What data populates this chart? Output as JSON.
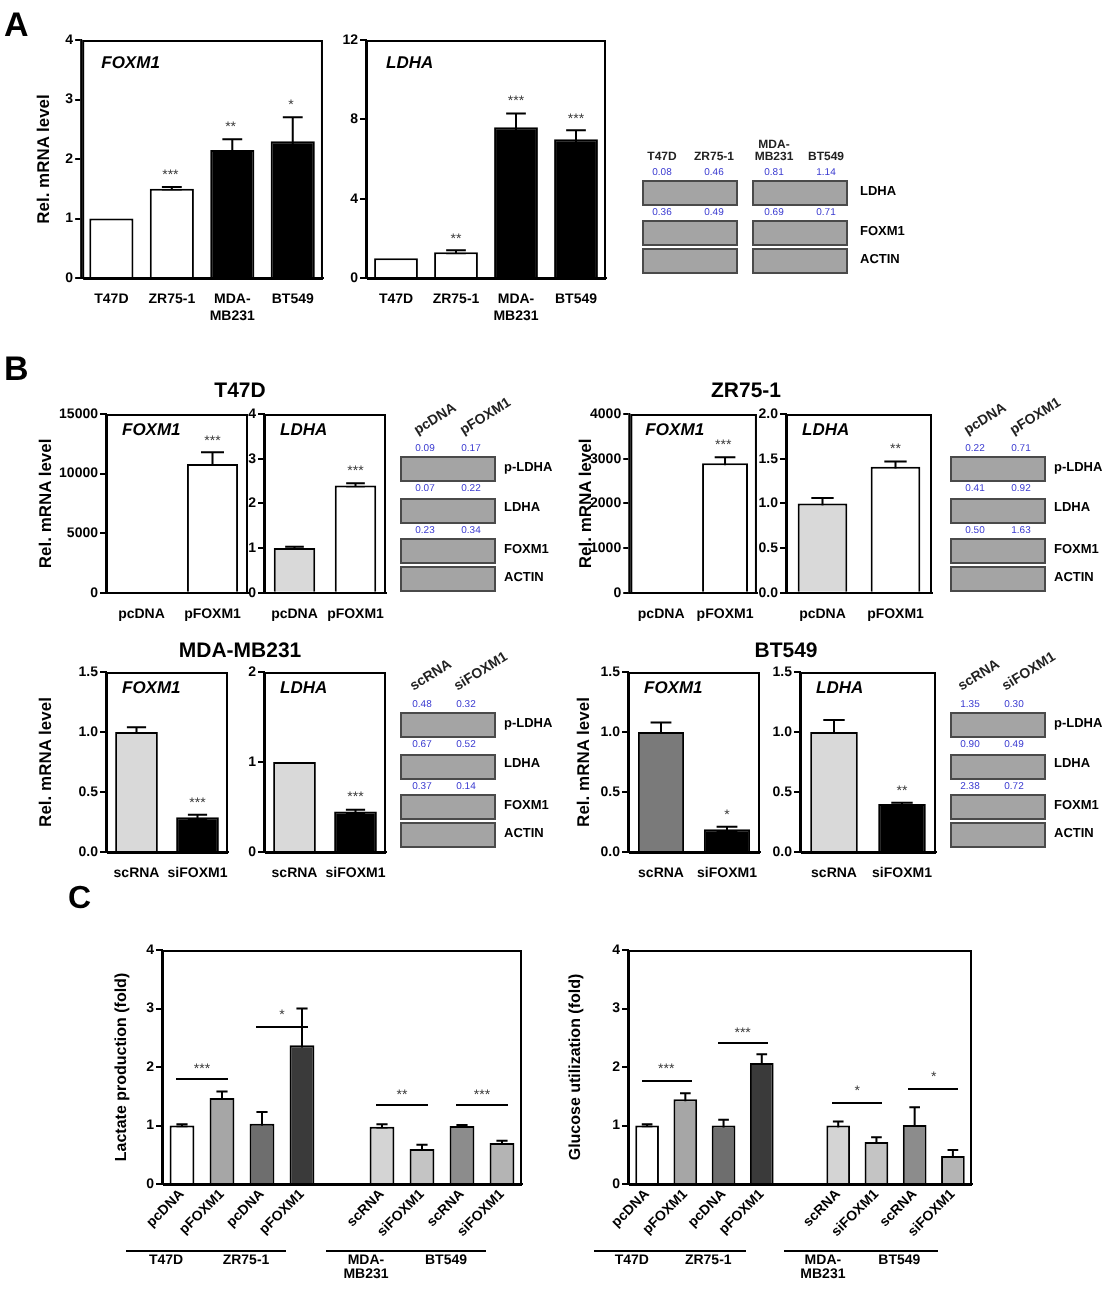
{
  "chart_data": [
    {
      "type": "other",
      "title": "A"
    },
    {
      "type": "bar",
      "title": "FOXM1",
      "ylabel": "Rel. mRNA level",
      "categories": [
        "T47D",
        "ZR75-1",
        "MDA-MB231",
        "BT549"
      ],
      "values": [
        1.0,
        1.5,
        2.15,
        2.3
      ],
      "errors": [
        null,
        0.03,
        0.18,
        0.4
      ],
      "value_labels": [
        null,
        "***",
        "**",
        "*"
      ],
      "colors": [
        "#ffffff",
        "#ffffff",
        "#000000",
        "#000000"
      ],
      "ylim": [
        0,
        4
      ],
      "yticks": [
        0,
        1,
        2,
        3,
        4
      ]
    },
    {
      "type": "bar",
      "title": "LDHA",
      "categories": [
        "T47D",
        "ZR75-1",
        "MDA-MB231",
        "BT549"
      ],
      "values": [
        1.0,
        1.3,
        7.6,
        7.0
      ],
      "errors": [
        null,
        0.1,
        0.7,
        0.45
      ],
      "value_labels": [
        null,
        "**",
        "***",
        "***"
      ],
      "colors": [
        "#ffffff",
        "#ffffff",
        "#000000",
        "#000000"
      ],
      "ylim": [
        0,
        12
      ],
      "yticks": [
        0,
        4,
        8,
        12
      ]
    },
    {
      "type": "other",
      "categories": [
        "T47D",
        "ZR75-1",
        "MDA-MB231",
        "BT549"
      ],
      "series": [
        {
          "name": "LDHA",
          "values": [
            0.08,
            0.46,
            0.81,
            1.14
          ]
        },
        {
          "name": "FOXM1",
          "values": [
            0.36,
            0.49,
            0.69,
            0.71
          ]
        },
        {
          "name": "ACTIN",
          "values": [
            null,
            null,
            null,
            null
          ]
        }
      ],
      "data_labels": true
    },
    {
      "type": "other",
      "title": "B"
    },
    {
      "type": "other",
      "title": "T47D"
    },
    {
      "type": "bar",
      "title": "FOXM1",
      "ylabel": "Rel. mRNA level",
      "categories": [
        "pcDNA",
        "pFOXM1"
      ],
      "values": [
        0,
        10800
      ],
      "errors": [
        null,
        1000
      ],
      "value_labels": [
        null,
        "***"
      ],
      "colors": [
        "#ffffff",
        "#ffffff"
      ],
      "ylim": [
        0,
        15000
      ],
      "yticks": [
        0,
        5000,
        10000,
        15000
      ]
    },
    {
      "type": "bar",
      "title": "LDHA",
      "categories": [
        "pcDNA",
        "pFOXM1"
      ],
      "values": [
        1.0,
        2.4
      ],
      "errors": [
        0.03,
        0.05
      ],
      "value_labels": [
        null,
        "***"
      ],
      "colors": [
        "#d9d9d9",
        "#ffffff"
      ],
      "ylim": [
        0,
        4
      ],
      "yticks": [
        0,
        1,
        2,
        3,
        4
      ]
    },
    {
      "type": "other",
      "categories": [
        "pcDNA",
        "pFOXM1"
      ],
      "series": [
        {
          "name": "p-LDHA",
          "values": [
            0.09,
            0.17
          ]
        },
        {
          "name": "LDHA",
          "values": [
            0.07,
            0.22
          ]
        },
        {
          "name": "FOXM1",
          "values": [
            0.23,
            0.34
          ]
        },
        {
          "name": "ACTIN",
          "values": [
            null,
            null
          ]
        }
      ],
      "data_labels": true
    },
    {
      "type": "other",
      "title": "ZR75-1"
    },
    {
      "type": "bar",
      "title": "FOXM1",
      "ylabel": "Rel. mRNA level",
      "categories": [
        "pcDNA",
        "pFOXM1"
      ],
      "values": [
        0,
        2900
      ],
      "errors": [
        null,
        130
      ],
      "value_labels": [
        null,
        "***"
      ],
      "colors": [
        "#ffffff",
        "#ffffff"
      ],
      "ylim": [
        0,
        4000
      ],
      "yticks": [
        0,
        1000,
        2000,
        3000,
        4000
      ]
    },
    {
      "type": "bar",
      "title": "LDHA",
      "categories": [
        "pcDNA",
        "pFOXM1"
      ],
      "values": [
        1.0,
        1.41
      ],
      "errors": [
        0.06,
        0.06
      ],
      "value_labels": [
        null,
        "**"
      ],
      "colors": [
        "#d9d9d9",
        "#ffffff"
      ],
      "ylim": [
        0,
        2
      ],
      "yticks": [
        {
          "value": 0,
          "label": "0.0"
        },
        {
          "value": 0.5,
          "label": "0.5"
        },
        {
          "value": 1,
          "label": "1.0"
        },
        {
          "value": 1.5,
          "label": "1.5"
        },
        {
          "value": 2,
          "label": "2.0"
        }
      ]
    },
    {
      "type": "other",
      "categories": [
        "pcDNA",
        "pFOXM1"
      ],
      "series": [
        {
          "name": "p-LDHA",
          "values": [
            0.22,
            0.71
          ]
        },
        {
          "name": "LDHA",
          "values": [
            0.41,
            0.92
          ]
        },
        {
          "name": "FOXM1",
          "values": [
            0.5,
            1.63
          ],
          "value_labels": [
            "0.50",
            "1.63"
          ]
        },
        {
          "name": "ACTIN",
          "values": [
            null,
            null
          ]
        }
      ],
      "data_labels": true
    },
    {
      "type": "other",
      "title": "MDA-MB231"
    },
    {
      "type": "bar",
      "title": "FOXM1",
      "ylabel": "Rel. mRNA level",
      "categories": [
        "scRNA",
        "siFOXM1"
      ],
      "values": [
        1.0,
        0.29
      ],
      "errors": [
        0.04,
        0.02
      ],
      "value_labels": [
        null,
        "***"
      ],
      "colors": [
        "#d9d9d9",
        "#000000"
      ],
      "ylim": [
        0,
        1.5
      ],
      "yticks": [
        {
          "value": 0,
          "label": "0.0"
        },
        {
          "value": 0.5,
          "label": "0.5"
        },
        {
          "value": 1,
          "label": "1.0"
        },
        {
          "value": 1.5,
          "label": "1.5"
        }
      ]
    },
    {
      "type": "bar",
      "title": "LDHA",
      "categories": [
        "scRNA",
        "siFOXM1"
      ],
      "values": [
        1.0,
        0.45
      ],
      "errors": [
        null,
        0.02
      ],
      "value_labels": [
        null,
        "***"
      ],
      "colors": [
        "#d9d9d9",
        "#000000"
      ],
      "ylim": [
        0,
        2
      ],
      "yticks": [
        0,
        1,
        2
      ]
    },
    {
      "type": "other",
      "categories": [
        "scRNA",
        "siFOXM1"
      ],
      "series": [
        {
          "name": "p-LDHA",
          "values": [
            0.48,
            0.32
          ]
        },
        {
          "name": "LDHA",
          "values": [
            0.67,
            0.52
          ]
        },
        {
          "name": "FOXM1",
          "values": [
            0.37,
            0.14
          ]
        },
        {
          "name": "ACTIN",
          "values": [
            null,
            null
          ]
        }
      ],
      "data_labels": true
    },
    {
      "type": "other",
      "title": "BT549"
    },
    {
      "type": "bar",
      "title": "FOXM1",
      "ylabel": "Rel. mRNA level",
      "categories": [
        "scRNA",
        "siFOXM1"
      ],
      "values": [
        1.0,
        0.19
      ],
      "errors": [
        0.08,
        0.02
      ],
      "value_labels": [
        null,
        "*"
      ],
      "colors": [
        "#7a7a7a",
        "#000000"
      ],
      "ylim": [
        0,
        1.5
      ],
      "yticks": [
        {
          "value": 0,
          "label": "0.0"
        },
        {
          "value": 0.5,
          "label": "0.5"
        },
        {
          "value": 1,
          "label": "1.0"
        },
        {
          "value": 1.5,
          "label": "1.5"
        }
      ]
    },
    {
      "type": "bar",
      "title": "LDHA",
      "categories": [
        "scRNA",
        "siFOXM1"
      ],
      "values": [
        1.0,
        0.4
      ],
      "errors": [
        0.1,
        0.01
      ],
      "value_labels": [
        null,
        "**"
      ],
      "colors": [
        "#d9d9d9",
        "#000000"
      ],
      "ylim": [
        0,
        1.5
      ],
      "yticks": [
        {
          "value": 0,
          "label": "0.0"
        },
        {
          "value": 0.5,
          "label": "0.5"
        },
        {
          "value": 1,
          "label": "1.0"
        },
        {
          "value": 1.5,
          "label": "1.5"
        }
      ]
    },
    {
      "type": "other",
      "categories": [
        "scRNA",
        "siFOXM1"
      ],
      "series": [
        {
          "name": "p-LDHA",
          "values": [
            1.35,
            0.3
          ],
          "value_labels": [
            "1.35",
            "0.30"
          ]
        },
        {
          "name": "LDHA",
          "values": [
            0.9,
            0.49
          ],
          "value_labels": [
            "0.90",
            "0.49"
          ]
        },
        {
          "name": "FOXM1",
          "values": [
            2.38,
            0.72
          ]
        },
        {
          "name": "ACTIN",
          "values": [
            null,
            null
          ]
        }
      ],
      "data_labels": true
    },
    {
      "type": "other",
      "title": "C"
    },
    {
      "type": "bar",
      "ylabel": "Lactate production (fold)",
      "categories": [
        "pcDNA",
        "pFOXM1",
        "pcDNA",
        "pFOXM1",
        null,
        "scRNA",
        "siFOXM1",
        "scRNA",
        "siFOXM1"
      ],
      "values": [
        1.0,
        1.47,
        1.03,
        2.37,
        null,
        0.98,
        0.6,
        0.99,
        0.7
      ],
      "errors": [
        0.02,
        0.11,
        0.2,
        0.63,
        null,
        0.04,
        0.07,
        0.02,
        0.04
      ],
      "colors": [
        "#ffffff",
        "#a6a6a6",
        "#6e6e6e",
        "#3a3a3a",
        null,
        "#d4d4d4",
        "#c4c4c4",
        "#8c8c8c",
        "#b4b4b4"
      ],
      "ylim": [
        0,
        4
      ],
      "yticks": [
        0,
        1,
        2,
        3,
        4
      ],
      "annotations": [
        "***",
        "*",
        "**",
        "***",
        "T47D",
        "ZR75-1",
        "MDA-MB231",
        "BT549"
      ]
    },
    {
      "type": "bar",
      "ylabel": "Glucose utilization (fold)",
      "categories": [
        "pcDNA",
        "pFOXM1",
        "pcDNA",
        "pFOXM1",
        null,
        "scRNA",
        "siFOXM1",
        "scRNA",
        "siFOXM1"
      ],
      "values": [
        1.0,
        1.45,
        1.0,
        2.07,
        null,
        1.0,
        0.72,
        1.01,
        0.48
      ],
      "errors": [
        0.02,
        0.1,
        0.1,
        0.15,
        null,
        0.07,
        0.08,
        0.3,
        0.1
      ],
      "colors": [
        "#ffffff",
        "#a6a6a6",
        "#6e6e6e",
        "#3a3a3a",
        null,
        "#d4d4d4",
        "#c4c4c4",
        "#8c8c8c",
        "#b4b4b4"
      ],
      "ylim": [
        0,
        4
      ],
      "yticks": [
        0,
        1,
        2,
        3,
        4
      ],
      "annotations": [
        "***",
        "***",
        "*",
        "*",
        "T47D",
        "ZR75-1",
        "MDA-MB231",
        "BT549"
      ]
    }
  ]
}
